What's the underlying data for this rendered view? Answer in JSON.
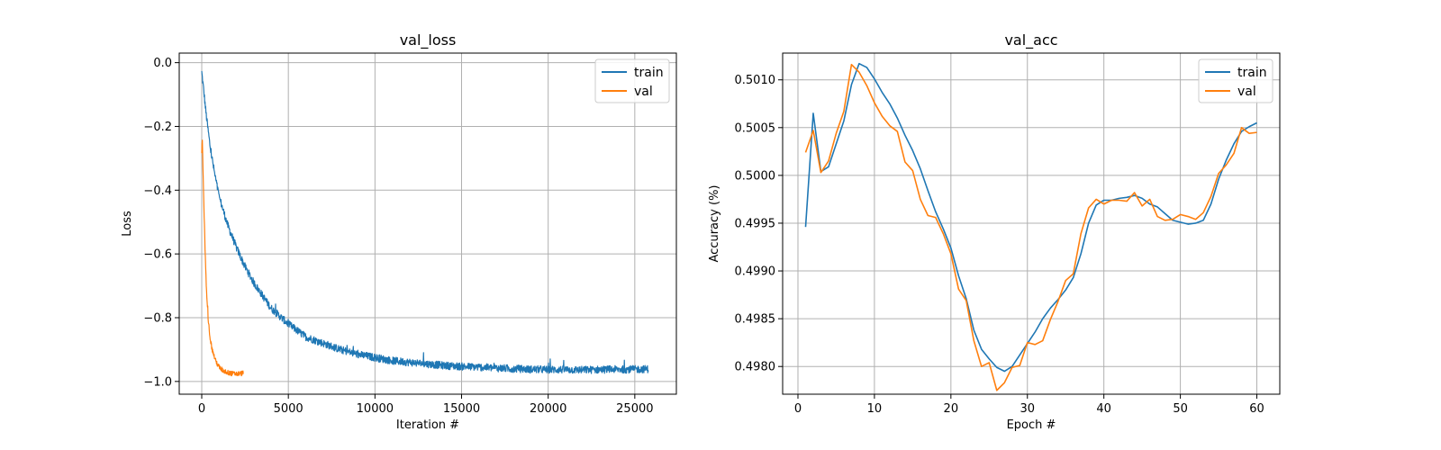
{
  "chart_data": [
    {
      "type": "line",
      "title": "val_loss",
      "xlabel": "Iteration #",
      "ylabel": "Loss",
      "xlim": [
        -1300,
        27400
      ],
      "ylim": [
        -1.04,
        0.03
      ],
      "xticks": [
        0,
        5000,
        10000,
        15000,
        20000,
        25000
      ],
      "xtick_labels": [
        "0",
        "5000",
        "10000",
        "15000",
        "20000",
        "25000"
      ],
      "yticks": [
        0.0,
        -0.2,
        -0.4,
        -0.6,
        -0.8,
        -1.0
      ],
      "ytick_labels": [
        "0.0",
        "−0.2",
        "−0.4",
        "−0.6",
        "−0.8",
        "−1.0"
      ],
      "grid": true,
      "legend": "top-right",
      "colors": {
        "train": "#1f77b4",
        "val": "#ff7f0e"
      },
      "series": [
        {
          "name": "train",
          "x": [
            0,
            100,
            250,
            500,
            750,
            1000,
            1500,
            2000,
            2500,
            3000,
            4000,
            5000,
            6000,
            7000,
            8000,
            9000,
            10000,
            11000,
            12000,
            13000,
            14000,
            15000,
            16000,
            17000,
            18000,
            19000,
            20000,
            21000,
            22000,
            23000,
            24000,
            25000,
            25800
          ],
          "values": [
            -0.03,
            -0.08,
            -0.16,
            -0.27,
            -0.35,
            -0.42,
            -0.51,
            -0.58,
            -0.64,
            -0.69,
            -0.77,
            -0.82,
            -0.86,
            -0.88,
            -0.9,
            -0.915,
            -0.925,
            -0.935,
            -0.94,
            -0.945,
            -0.95,
            -0.953,
            -0.955,
            -0.958,
            -0.96,
            -0.962,
            -0.963,
            -0.963,
            -0.964,
            -0.963,
            -0.962,
            -0.962,
            -0.961
          ],
          "noise": 0.012
        },
        {
          "name": "val",
          "x": [
            0,
            30,
            60,
            100,
            150,
            200,
            250,
            300,
            400,
            500,
            600,
            800,
            1000,
            1200,
            1500,
            1800,
            2100,
            2400
          ],
          "values": [
            -0.28,
            -0.24,
            -0.3,
            -0.4,
            -0.5,
            -0.6,
            -0.68,
            -0.75,
            -0.82,
            -0.87,
            -0.9,
            -0.935,
            -0.955,
            -0.965,
            -0.972,
            -0.976,
            -0.976,
            -0.974
          ],
          "noise": 0.008
        }
      ]
    },
    {
      "type": "line",
      "title": "val_acc",
      "xlabel": "Epoch #",
      "ylabel": "Accuracy (%)",
      "xlim": [
        -2,
        63
      ],
      "ylim": [
        0.49771,
        0.50128
      ],
      "xticks": [
        0,
        10,
        20,
        30,
        40,
        50,
        60
      ],
      "xtick_labels": [
        "0",
        "10",
        "20",
        "30",
        "40",
        "50",
        "60"
      ],
      "yticks": [
        0.498,
        0.4985,
        0.499,
        0.4995,
        0.5,
        0.5005,
        0.501
      ],
      "ytick_labels": [
        "0.4980",
        "0.4985",
        "0.4990",
        "0.4995",
        "0.5000",
        "0.5005",
        "0.5010"
      ],
      "grid": true,
      "legend": "top-right",
      "colors": {
        "train": "#1f77b4",
        "val": "#ff7f0e"
      },
      "series": [
        {
          "name": "train",
          "x": [
            1,
            2,
            3,
            4,
            5,
            6,
            7,
            8,
            9,
            10,
            11,
            12,
            13,
            14,
            15,
            16,
            17,
            18,
            19,
            20,
            21,
            22,
            23,
            24,
            25,
            26,
            27,
            28,
            29,
            30,
            31,
            32,
            33,
            34,
            35,
            36,
            37,
            38,
            39,
            40,
            41,
            42,
            43,
            44,
            45,
            46,
            47,
            48,
            49,
            50,
            51,
            52,
            53,
            54,
            55,
            56,
            57,
            58,
            59,
            60
          ],
          "values": [
            0.49946,
            0.50065,
            0.50004,
            0.50009,
            0.50033,
            0.50057,
            0.50095,
            0.50117,
            0.50113,
            0.50101,
            0.50087,
            0.50075,
            0.5006,
            0.50042,
            0.50026,
            0.50007,
            0.49984,
            0.49962,
            0.49944,
            0.49924,
            0.49895,
            0.49871,
            0.49838,
            0.49818,
            0.49808,
            0.49799,
            0.49795,
            0.498,
            0.49812,
            0.49824,
            0.49836,
            0.4985,
            0.49861,
            0.4987,
            0.4988,
            0.49893,
            0.49918,
            0.4995,
            0.49969,
            0.49974,
            0.49974,
            0.49976,
            0.49977,
            0.49979,
            0.49976,
            0.4997,
            0.49967,
            0.4996,
            0.49953,
            0.49951,
            0.49949,
            0.4995,
            0.49953,
            0.4997,
            0.49996,
            0.50016,
            0.50033,
            0.50046,
            0.50051,
            0.50055
          ]
        },
        {
          "name": "val",
          "x": [
            1,
            2,
            3,
            4,
            5,
            6,
            7,
            8,
            9,
            10,
            11,
            12,
            13,
            14,
            15,
            16,
            17,
            18,
            19,
            20,
            21,
            22,
            23,
            24,
            25,
            26,
            27,
            28,
            29,
            30,
            31,
            32,
            33,
            34,
            35,
            36,
            37,
            38,
            39,
            40,
            41,
            42,
            43,
            44,
            45,
            46,
            47,
            48,
            49,
            50,
            51,
            52,
            53,
            54,
            55,
            56,
            57,
            58,
            59,
            60
          ],
          "values": [
            0.50024,
            0.50047,
            0.50003,
            0.50015,
            0.50044,
            0.50067,
            0.50116,
            0.50108,
            0.50094,
            0.50076,
            0.50062,
            0.50052,
            0.50046,
            0.50014,
            0.50005,
            0.49975,
            0.49958,
            0.49956,
            0.49939,
            0.49918,
            0.49881,
            0.49869,
            0.49827,
            0.498,
            0.49804,
            0.49775,
            0.49783,
            0.49799,
            0.49801,
            0.49825,
            0.49823,
            0.49827,
            0.49849,
            0.49868,
            0.4989,
            0.49897,
            0.49939,
            0.49966,
            0.49975,
            0.4997,
            0.49974,
            0.49974,
            0.49973,
            0.49982,
            0.49968,
            0.49975,
            0.49957,
            0.49953,
            0.49954,
            0.49959,
            0.49957,
            0.49954,
            0.49961,
            0.49978,
            0.50002,
            0.50011,
            0.50023,
            0.5005,
            0.50044,
            0.50045
          ]
        }
      ]
    }
  ]
}
